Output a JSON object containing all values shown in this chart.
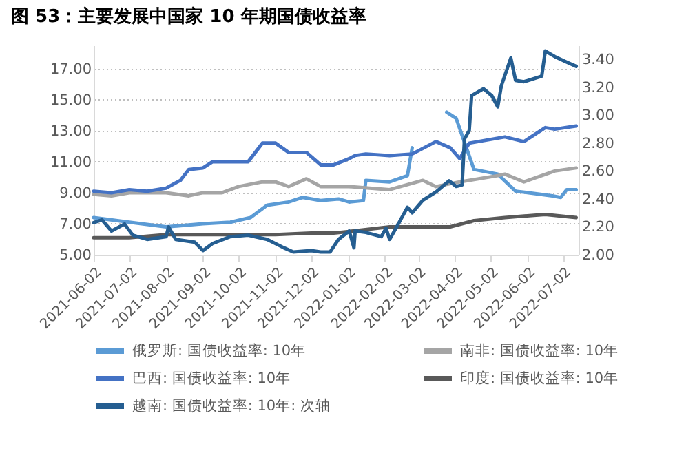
{
  "chart_data": {
    "type": "line",
    "title": "图 53：主要发展中国家 10 年期国债收益率",
    "xlim": [
      "2021-06-02",
      "2022-07-15"
    ],
    "xticks": [
      "2021-06-02",
      "2021-07-02",
      "2021-08-02",
      "2021-09-02",
      "2021-10-02",
      "2021-11-02",
      "2021-12-02",
      "2022-01-02",
      "2022-02-02",
      "2022-03-02",
      "2022-04-02",
      "2022-05-02",
      "2022-06-02",
      "2022-07-02"
    ],
    "ylim": [
      5,
      18.5
    ],
    "yticks": [
      {
        "value": 5,
        "label": "5.00"
      },
      {
        "value": 7,
        "label": "7.00"
      },
      {
        "value": 9,
        "label": "9.00"
      },
      {
        "value": 11,
        "label": "11.00"
      },
      {
        "value": 13,
        "label": "13.00"
      },
      {
        "value": 15,
        "label": "15.00"
      },
      {
        "value": 17,
        "label": "17.00"
      }
    ],
    "y2lim": [
      2,
      3.5
    ],
    "y2ticks": [
      {
        "value": 2,
        "label": "2.00"
      },
      {
        "value": 2.2,
        "label": "2.20"
      },
      {
        "value": 2.4,
        "label": "2.40"
      },
      {
        "value": 2.6,
        "label": "2.60"
      },
      {
        "value": 2.8,
        "label": "2.80"
      },
      {
        "value": 3,
        "label": "3.00"
      },
      {
        "value": 3.2,
        "label": "3.20"
      },
      {
        "value": 3.4,
        "label": "3.40"
      }
    ],
    "grid": "y",
    "legend": "bottom",
    "line_style": "solid",
    "marker": "none",
    "series": [
      {
        "name": "俄罗斯: 国债收益率: 10年",
        "color": "#5b9bd5",
        "x": [
          "2021-06-02",
          "2021-07-02",
          "2021-08-02",
          "2021-09-02",
          "2021-09-25",
          "2021-10-12",
          "2021-10-26",
          "2021-11-13",
          "2021-11-25",
          "2021-12-10",
          "2021-12-25",
          "2022-01-03",
          "2022-01-15",
          "2022-01-17",
          "2022-02-06",
          "2022-02-21",
          "2022-02-25",
          "2022-02-27",
          "2022-03-03",
          "2022-03-23",
          "2022-03-26",
          "2022-04-03",
          "2022-04-18",
          "2022-05-08",
          "2022-05-23",
          "2022-06-03",
          "2022-06-23",
          "2022-06-30",
          "2022-07-05",
          "2022-07-13"
        ],
        "values": [
          7.4,
          7.1,
          6.8,
          7.0,
          7.1,
          7.4,
          8.2,
          8.4,
          8.7,
          8.5,
          8.6,
          8.4,
          8.5,
          9.8,
          9.7,
          10.1,
          11.9,
          null,
          null,
          null,
          14.2,
          13.8,
          10.5,
          10.2,
          9.1,
          9.0,
          8.8,
          8.7,
          9.2,
          9.2
        ]
      },
      {
        "name": "南非: 国债收益率: 10年",
        "color": "#a5a5a5",
        "x": [
          "2021-06-02",
          "2021-06-17",
          "2021-07-02",
          "2021-08-02",
          "2021-08-21",
          "2021-09-02",
          "2021-09-18",
          "2021-10-02",
          "2021-10-22",
          "2021-11-02",
          "2021-11-13",
          "2021-11-28",
          "2021-12-10",
          "2022-01-03",
          "2022-02-06",
          "2022-03-06",
          "2022-03-17",
          "2022-04-06",
          "2022-05-08",
          "2022-05-14",
          "2022-05-30",
          "2022-06-25",
          "2022-07-13"
        ],
        "values": [
          8.9,
          8.8,
          9.0,
          9.0,
          8.8,
          9.0,
          9.0,
          9.4,
          9.7,
          9.7,
          9.4,
          9.9,
          9.4,
          9.4,
          9.2,
          9.8,
          9.4,
          9.7,
          10.1,
          10.2,
          9.7,
          10.4,
          10.6
        ]
      },
      {
        "name": "巴西: 国债收益率: 10年",
        "color": "#4472c4",
        "x": [
          "2021-06-02",
          "2021-06-17",
          "2021-07-02",
          "2021-07-17",
          "2021-08-02",
          "2021-08-14",
          "2021-08-21",
          "2021-09-02",
          "2021-09-10",
          "2021-09-25",
          "2021-10-10",
          "2021-10-22",
          "2021-11-02",
          "2021-11-13",
          "2021-11-28",
          "2021-12-10",
          "2021-12-21",
          "2022-01-03",
          "2022-01-08",
          "2022-01-17",
          "2022-02-06",
          "2022-02-25",
          "2022-03-17",
          "2022-03-29",
          "2022-04-06",
          "2022-04-14",
          "2022-05-14",
          "2022-05-30",
          "2022-06-17",
          "2022-06-25",
          "2022-07-13"
        ],
        "values": [
          9.1,
          9.0,
          9.2,
          9.1,
          9.3,
          9.8,
          10.5,
          10.6,
          11.0,
          11.0,
          11.0,
          12.2,
          12.2,
          11.6,
          11.6,
          10.8,
          10.8,
          11.2,
          11.4,
          11.5,
          11.4,
          11.5,
          12.3,
          11.9,
          11.2,
          12.2,
          12.6,
          12.3,
          13.2,
          13.1,
          13.3
        ]
      },
      {
        "name": "印度: 国债收益率: 10年",
        "color": "#595959",
        "x": [
          "2021-06-02",
          "2021-07-02",
          "2021-08-02",
          "2021-09-02",
          "2021-10-02",
          "2021-11-02",
          "2021-12-02",
          "2021-12-21",
          "2022-01-03",
          "2022-02-06",
          "2022-03-06",
          "2022-03-29",
          "2022-04-18",
          "2022-05-14",
          "2022-06-17",
          "2022-07-13"
        ],
        "values": [
          6.1,
          6.1,
          6.3,
          6.3,
          6.3,
          6.3,
          6.4,
          6.4,
          6.5,
          6.8,
          6.8,
          6.8,
          7.2,
          7.4,
          7.6,
          7.4
        ]
      },
      {
        "name": "越南: 国债收益率: 10年: 次轴",
        "color": "#255e91",
        "axis": "y2",
        "x": [
          "2021-06-02",
          "2021-06-09",
          "2021-06-17",
          "2021-06-28",
          "2021-07-05",
          "2021-07-17",
          "2021-08-02",
          "2021-08-04",
          "2021-08-10",
          "2021-08-26",
          "2021-09-02",
          "2021-09-10",
          "2021-09-25",
          "2021-10-10",
          "2021-10-26",
          "2021-11-09",
          "2021-11-17",
          "2021-12-02",
          "2021-12-10",
          "2021-12-18",
          "2021-12-25",
          "2022-01-03",
          "2022-01-07",
          "2022-01-08",
          "2022-01-17",
          "2022-01-30",
          "2022-02-03",
          "2022-02-06",
          "2022-02-12",
          "2022-02-21",
          "2022-02-25",
          "2022-03-06",
          "2022-03-17",
          "2022-03-28",
          "2022-04-03",
          "2022-04-08",
          "2022-04-10",
          "2022-04-14",
          "2022-04-16",
          "2022-04-26",
          "2022-05-03",
          "2022-05-08",
          "2022-05-11",
          "2022-05-19",
          "2022-05-23",
          "2022-05-30",
          "2022-06-14",
          "2022-06-17",
          "2022-06-25",
          "2022-07-05",
          "2022-07-13"
        ],
        "values": [
          2.23,
          2.25,
          2.17,
          2.22,
          2.14,
          2.11,
          2.13,
          2.2,
          2.11,
          2.09,
          2.03,
          2.08,
          2.13,
          2.14,
          2.11,
          2.05,
          2.02,
          2.03,
          2.02,
          2.02,
          2.11,
          2.17,
          2.05,
          2.17,
          2.16,
          2.13,
          2.19,
          2.11,
          2.2,
          2.34,
          2.3,
          2.39,
          2.45,
          2.53,
          2.49,
          2.5,
          2.83,
          2.89,
          3.14,
          3.19,
          3.14,
          3.06,
          3.21,
          3.41,
          3.25,
          3.24,
          3.28,
          3.46,
          3.42,
          3.38,
          3.35
        ]
      }
    ]
  }
}
